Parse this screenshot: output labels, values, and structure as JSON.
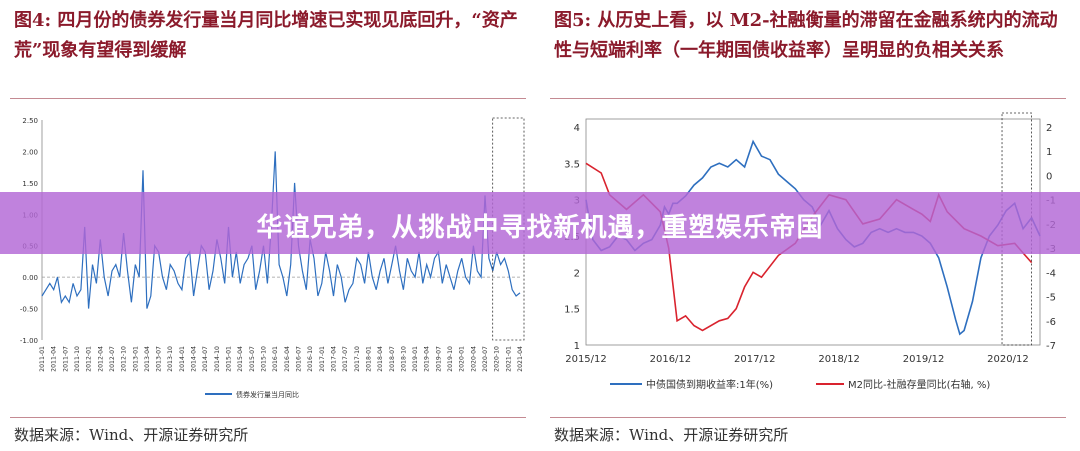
{
  "left": {
    "title": "图4:  四月份的债券发行量当月同比增速已实现见底回升，“资产荒”现象有望得到缓解",
    "source": "数据来源：Wind、开源证券研究所",
    "chart_data": {
      "type": "line",
      "ylim": [
        -1.0,
        2.5
      ],
      "yticks": [
        "2.50",
        "2.00",
        "1.50",
        "1.00",
        "0.50",
        "0.00",
        "-0.50",
        "-1.00"
      ],
      "ytick_values": [
        2.5,
        2.0,
        1.5,
        1.0,
        0.5,
        0.0,
        -0.5,
        -1.0
      ],
      "xtick_labels": [
        "2011-01",
        "2011-04",
        "2011-07",
        "2011-10",
        "2012-01",
        "2012-04",
        "2012-07",
        "2012-10",
        "2013-01",
        "2013-04",
        "2013-07",
        "2013-10",
        "2014-01",
        "2014-04",
        "2014-07",
        "2014-10",
        "2015-01",
        "2015-04",
        "2015-07",
        "2015-10",
        "2016-01",
        "2016-04",
        "2016-07",
        "2016-10",
        "2017-01",
        "2017-04",
        "2017-07",
        "2017-10",
        "2018-01",
        "2018-04",
        "2018-07",
        "2018-10",
        "2019-01",
        "2019-04",
        "2019-07",
        "2019-10",
        "2020-01",
        "2020-04",
        "2020-07",
        "2020-10",
        "2021-01",
        "2021-04"
      ],
      "series": [
        {
          "name": "债券发行量当月同比",
          "color": "#2e6fbf",
          "values": [
            -0.3,
            -0.2,
            -0.1,
            -0.2,
            0.0,
            -0.4,
            -0.3,
            -0.4,
            -0.1,
            -0.3,
            -0.2,
            0.8,
            -0.5,
            0.2,
            -0.1,
            0.6,
            0.0,
            -0.3,
            0.1,
            0.2,
            0.0,
            0.7,
            0.1,
            -0.4,
            0.2,
            0.0,
            1.7,
            -0.5,
            -0.3,
            0.5,
            0.4,
            0.0,
            -0.2,
            0.2,
            0.1,
            -0.1,
            -0.2,
            0.3,
            0.4,
            -0.3,
            0.1,
            0.5,
            0.4,
            -0.2,
            0.1,
            0.6,
            0.3,
            -0.1,
            0.8,
            0.0,
            0.4,
            -0.1,
            0.2,
            0.3,
            0.5,
            -0.2,
            0.1,
            0.5,
            -0.1,
            0.8,
            2.0,
            0.2,
            0.0,
            -0.3,
            0.2,
            1.5,
            0.5,
            0.1,
            -0.2,
            0.6,
            0.3,
            -0.3,
            -0.1,
            0.4,
            0.1,
            -0.3,
            0.2,
            0.0,
            -0.4,
            -0.2,
            -0.1,
            0.3,
            0.2,
            -0.1,
            0.4,
            0.0,
            -0.2,
            0.1,
            0.3,
            -0.1,
            0.2,
            0.5,
            0.1,
            -0.2,
            0.3,
            0.1,
            0.0,
            0.4,
            -0.1,
            0.2,
            0.0,
            0.3,
            0.4,
            -0.1,
            0.2,
            0.0,
            -0.2,
            0.1,
            0.3,
            0.0,
            -0.1,
            0.5,
            0.1,
            0.0,
            1.3,
            0.3,
            0.1,
            0.4,
            0.2,
            0.3,
            0.1,
            -0.2,
            -0.3,
            -0.25
          ]
        }
      ],
      "highlight_box": {
        "from_label": "2020-10",
        "to_label": "2021-04"
      }
    }
  },
  "right": {
    "title": "图5:  从历史上看，以 M2-社融衡量的滞留在金融系统内的流动性与短端利率（一年期国债收益率）呈明显的负相关关系",
    "source": "数据来源：Wind、开源证券研究所",
    "chart_data": {
      "type": "line",
      "ylim": [
        1.0,
        4.0
      ],
      "y2lim": [
        -7,
        2
      ],
      "yticks": [
        "4",
        "3.5",
        "3",
        "2.5",
        "2",
        "1.5",
        "1"
      ],
      "ytick_values": [
        4,
        3.5,
        3,
        2.5,
        2,
        1.5,
        1
      ],
      "y2ticks": [
        "2",
        "1",
        "0",
        "-1",
        "-2",
        "-3",
        "-4",
        "-5",
        "-6",
        "-7"
      ],
      "y2tick_values": [
        2,
        1,
        0,
        -1,
        -2,
        -3,
        -4,
        -5,
        -6,
        -7
      ],
      "xtick_labels": [
        "2015/12",
        "2016/12",
        "2017/12",
        "2018/12",
        "2019/12",
        "2020/12"
      ],
      "xlim": [
        2015.92,
        2021.3
      ],
      "series": [
        {
          "name": "中债国债到期收益率:1年(%)",
          "color": "#2e6fbf",
          "axis": "left",
          "x": [
            2015.92,
            2016.0,
            2016.1,
            2016.2,
            2016.3,
            2016.4,
            2016.5,
            2016.6,
            2016.7,
            2016.8,
            2016.85,
            2016.9,
            2016.95,
            2017.0,
            2017.1,
            2017.2,
            2017.3,
            2017.4,
            2017.5,
            2017.6,
            2017.7,
            2017.8,
            2017.9,
            2018.0,
            2018.1,
            2018.2,
            2018.3,
            2018.4,
            2018.5,
            2018.6,
            2018.7,
            2018.8,
            2018.9,
            2019.0,
            2019.1,
            2019.2,
            2019.3,
            2019.4,
            2019.5,
            2019.6,
            2019.7,
            2019.8,
            2019.9,
            2020.0,
            2020.1,
            2020.2,
            2020.3,
            2020.35,
            2020.4,
            2020.5,
            2020.6,
            2020.7,
            2020.8,
            2020.9,
            2021.0,
            2021.1,
            2021.2,
            2021.3
          ],
          "y": [
            3.0,
            2.45,
            2.3,
            2.35,
            2.5,
            2.45,
            2.3,
            2.4,
            2.45,
            2.65,
            2.9,
            2.8,
            2.95,
            2.95,
            3.05,
            3.2,
            3.3,
            3.45,
            3.5,
            3.45,
            3.55,
            3.45,
            3.8,
            3.6,
            3.55,
            3.35,
            3.25,
            3.15,
            3.0,
            2.9,
            2.65,
            2.85,
            2.6,
            2.45,
            2.35,
            2.4,
            2.55,
            2.6,
            2.55,
            2.6,
            2.55,
            2.55,
            2.5,
            2.4,
            2.2,
            1.8,
            1.35,
            1.15,
            1.2,
            1.6,
            2.2,
            2.5,
            2.65,
            2.85,
            2.95,
            2.6,
            2.75,
            2.5
          ]
        },
        {
          "name": "M2同比-社融存量同比(右轴, %)",
          "color": "#d9232e",
          "axis": "right",
          "x": [
            2015.92,
            2016.1,
            2016.2,
            2016.4,
            2016.6,
            2016.8,
            2016.9,
            2017.0,
            2017.1,
            2017.2,
            2017.3,
            2017.5,
            2017.6,
            2017.7,
            2017.8,
            2017.9,
            2018.0,
            2018.2,
            2018.4,
            2018.6,
            2018.8,
            2019.0,
            2019.2,
            2019.4,
            2019.6,
            2019.8,
            2019.9,
            2020.0,
            2020.1,
            2020.2,
            2020.4,
            2020.6,
            2020.8,
            2021.0,
            2021.1,
            2021.2
          ],
          "y": [
            0.5,
            0.1,
            -0.8,
            -1.4,
            -0.8,
            -1.5,
            -3.0,
            -6.0,
            -5.8,
            -6.2,
            -6.4,
            -6.0,
            -5.9,
            -5.5,
            -4.6,
            -4.0,
            -4.2,
            -3.3,
            -2.8,
            -1.7,
            -0.8,
            -1.0,
            -2.0,
            -1.8,
            -1.0,
            -1.4,
            -1.6,
            -1.9,
            -0.8,
            -1.5,
            -2.2,
            -2.5,
            -2.9,
            -2.8,
            -3.2,
            -3.6
          ]
        }
      ],
      "highlight_box": {
        "from_x": 2020.85,
        "to_x": 2021.2
      }
    }
  },
  "banner": {
    "text": "华谊兄弟，从挑战中寻找新机遇，重塑娱乐帝国"
  }
}
